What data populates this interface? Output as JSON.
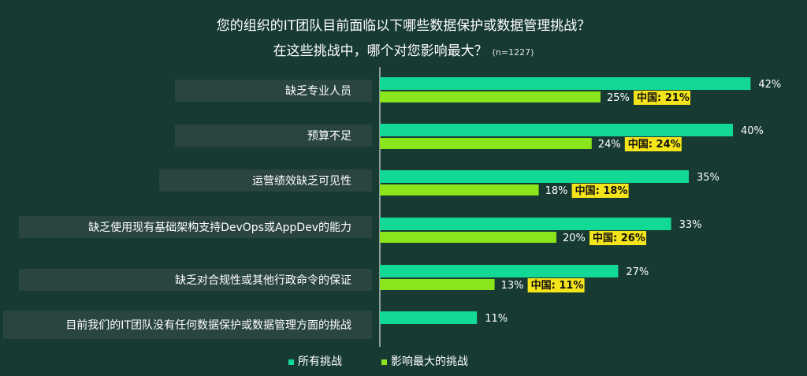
{
  "title_line1": "您的组织的IT团队目前面临以下哪些数据保护或数据管理挑战？",
  "title_line2": "在这些挑战中，哪个对您影响最大？",
  "sample_note": "(n=1227)",
  "colors": {
    "all_challenges": "#13d996",
    "biggest_challenge": "#8be51d",
    "china_highlight": "#f4e41a",
    "label_bg": "#2a4540",
    "background": "#173a33"
  },
  "chart_data": {
    "type": "bar",
    "orientation": "horizontal",
    "categories": [
      "缺乏专业人员",
      "预算不足",
      "运营绩效缺乏可见性",
      "缺乏使用现有基础架构支持DevOps或AppDev的能力",
      "缺乏对合规性或其他行政命令的保证",
      "目前我们的IT团队没有任何数据保护或数据管理方面的挑战"
    ],
    "series": [
      {
        "name": "所有挑战",
        "values": [
          42,
          40,
          35,
          33,
          27,
          11
        ],
        "labels": [
          "42%",
          "40%",
          "35%",
          "33%",
          "27%",
          "11%"
        ]
      },
      {
        "name": "影响最大的挑战",
        "values": [
          25,
          24,
          18,
          20,
          13,
          null
        ],
        "labels": [
          "25%",
          "24%",
          "18%",
          "20%",
          "13%",
          ""
        ]
      }
    ],
    "china_labels": [
      "中国: 21%",
      "中国: 24%",
      "中国: 18%",
      "中国: 26%",
      "中国: 11%",
      ""
    ],
    "xlim": [
      0,
      50
    ],
    "grid": false,
    "legend_position": "bottom"
  }
}
